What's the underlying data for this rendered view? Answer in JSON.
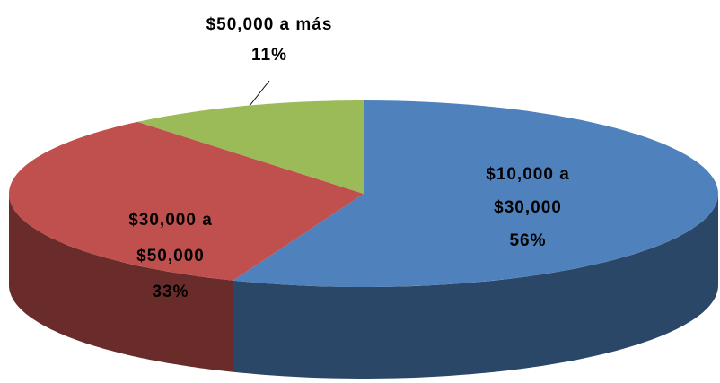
{
  "chart_data": {
    "type": "pie",
    "style": "3d",
    "categories": [
      "$10,000 a $30,000",
      "$30,000 a $50,000",
      "$50,000 a más"
    ],
    "values": [
      56,
      33,
      11
    ],
    "value_labels": [
      "56%",
      "33%",
      "11%"
    ],
    "colors": [
      "#4f81bd",
      "#c0504d",
      "#9bbb59"
    ]
  }
}
